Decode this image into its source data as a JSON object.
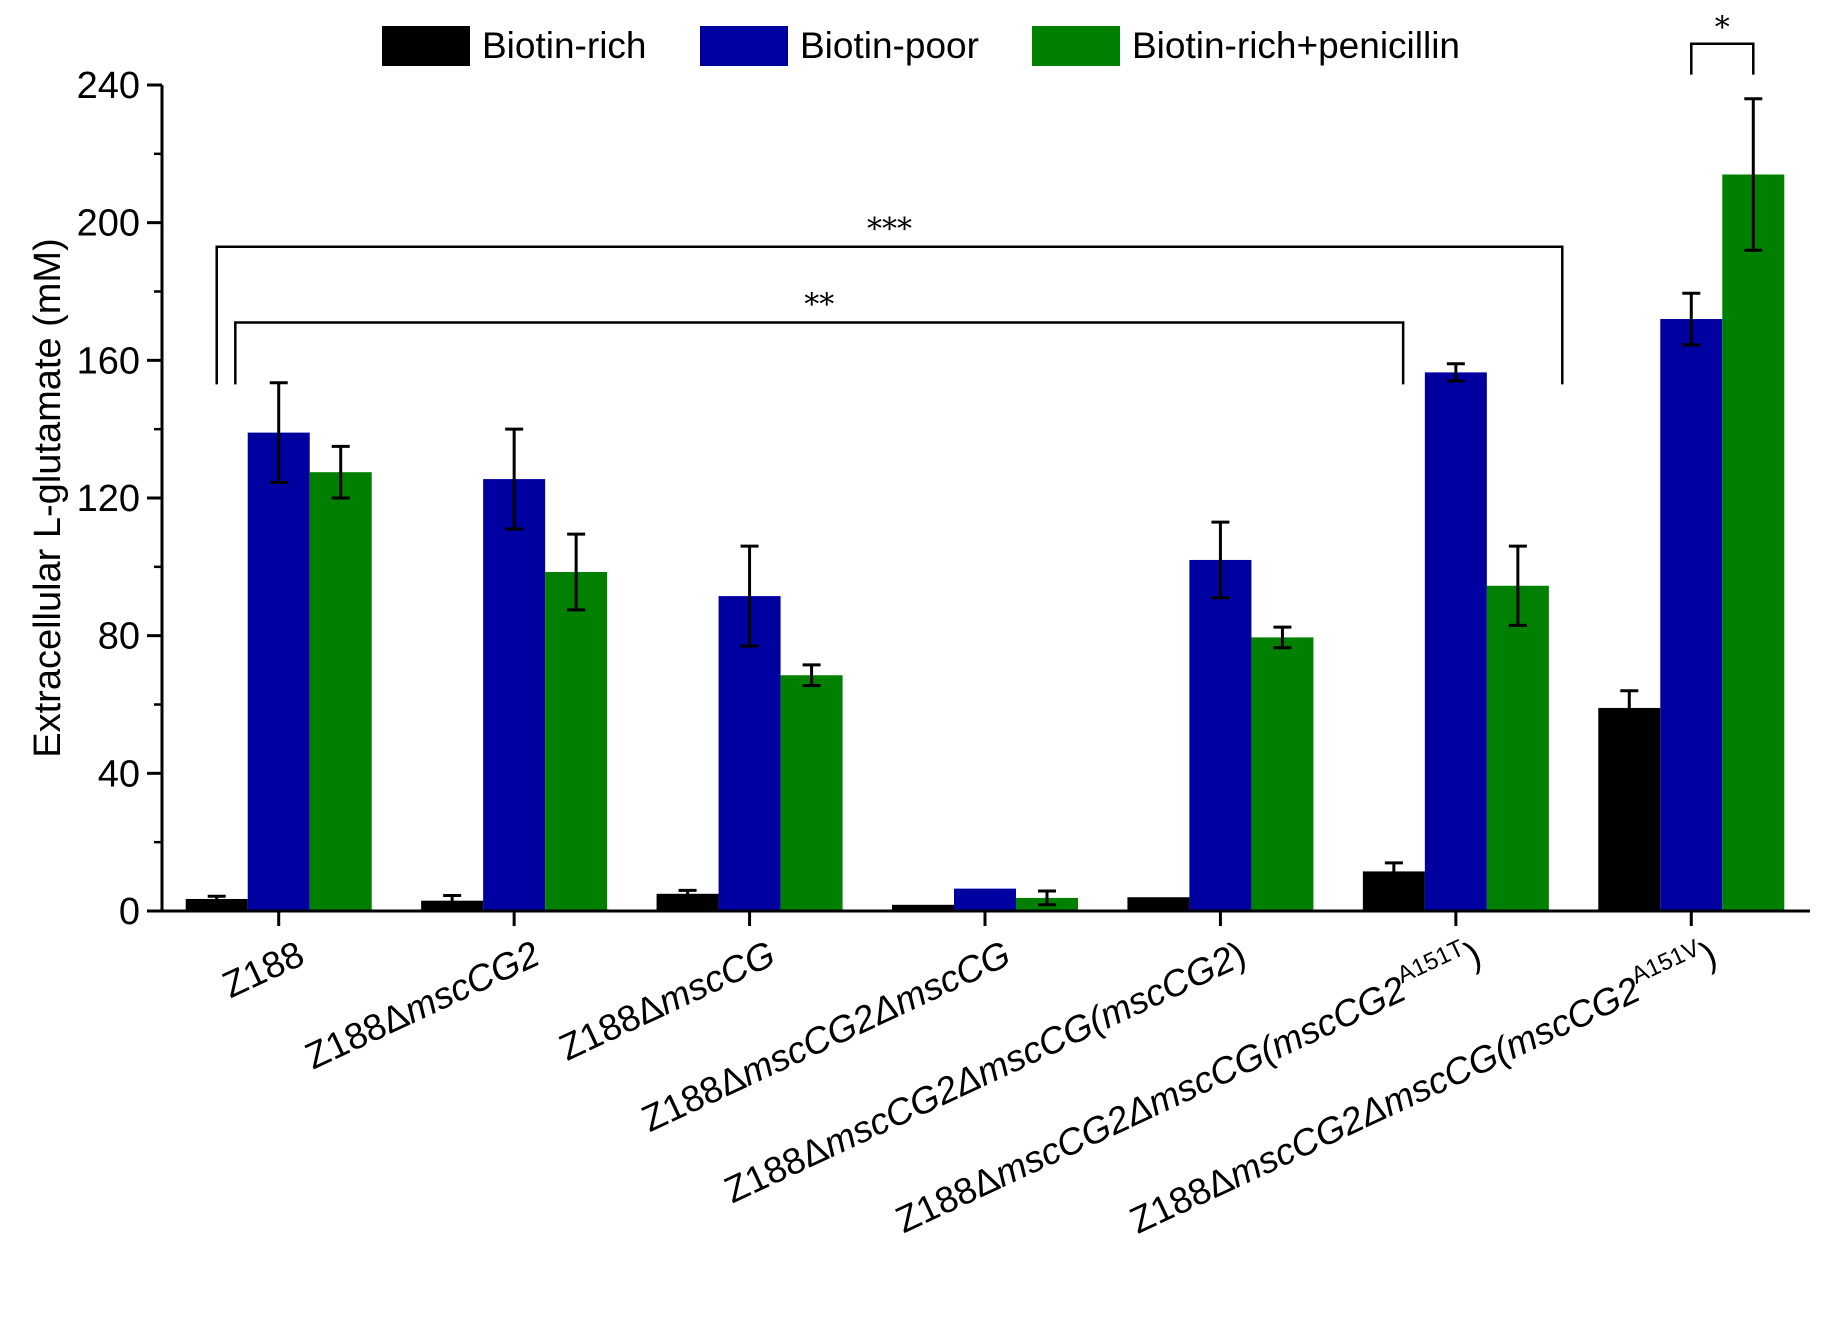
{
  "chart_data": {
    "type": "bar",
    "ylabel": "Extracellular L-glutamate (mM)",
    "ylim": [
      0,
      240
    ],
    "yticks": [
      0,
      40,
      80,
      120,
      160,
      200,
      240
    ],
    "legend_position": "top",
    "grid": false,
    "categories": [
      {
        "base": "Z188",
        "suffix": "",
        "sup": "",
        "tail": ""
      },
      {
        "base": "Z188Δ",
        "suffix": "mscCG2",
        "sup": "",
        "tail": ""
      },
      {
        "base": "Z188Δ",
        "suffix": "mscCG",
        "sup": "",
        "tail": ""
      },
      {
        "base": "Z188Δ",
        "suffix": "mscCG2Δ",
        "suffix2": "mscCG",
        "sup": "",
        "tail": ""
      },
      {
        "base": "Z188Δ",
        "suffix": "mscCG2Δ",
        "suffix2": "mscCG",
        "paren": "(mscCG2",
        "sup": "",
        "tail": ")"
      },
      {
        "base": "Z188Δ",
        "suffix": "mscCG2Δ",
        "suffix2": "mscCG",
        "paren": "(mscCG2",
        "sup": "A151T",
        "tail": ")"
      },
      {
        "base": "Z188Δ",
        "suffix": "mscCG2Δ",
        "suffix2": "mscCG",
        "paren": "(mscCG2",
        "sup": "A151V",
        "tail": ")"
      }
    ],
    "series": [
      {
        "name": "Biotin-rich",
        "color": "#000000",
        "values": [
          3.5,
          3,
          5,
          1.8,
          4,
          11.5,
          59
        ],
        "errors": [
          0.8,
          1.5,
          1,
          0,
          0,
          2.5,
          5
        ]
      },
      {
        "name": "Biotin-poor",
        "color": "#0000a0",
        "values": [
          139,
          125.5,
          91.5,
          6.5,
          102,
          156.5,
          172
        ],
        "errors": [
          14.5,
          14.5,
          14.5,
          0,
          11,
          2.5,
          7.5
        ]
      },
      {
        "name": "Biotin-rich+penicillin",
        "color": "#008000",
        "values": [
          127.5,
          98.5,
          68.5,
          3.8,
          79.5,
          94.5,
          214
        ],
        "errors": [
          7.5,
          11,
          3,
          2,
          3,
          11.5,
          22
        ]
      }
    ],
    "annotations": [
      {
        "label": "***",
        "from_category": 0,
        "to_category": 6,
        "y": 193
      },
      {
        "label": "**",
        "from_category": 0,
        "to_category": 5,
        "y": 171
      },
      {
        "label": "*",
        "from_category": 6,
        "to_category": 6,
        "y": 252
      }
    ]
  }
}
